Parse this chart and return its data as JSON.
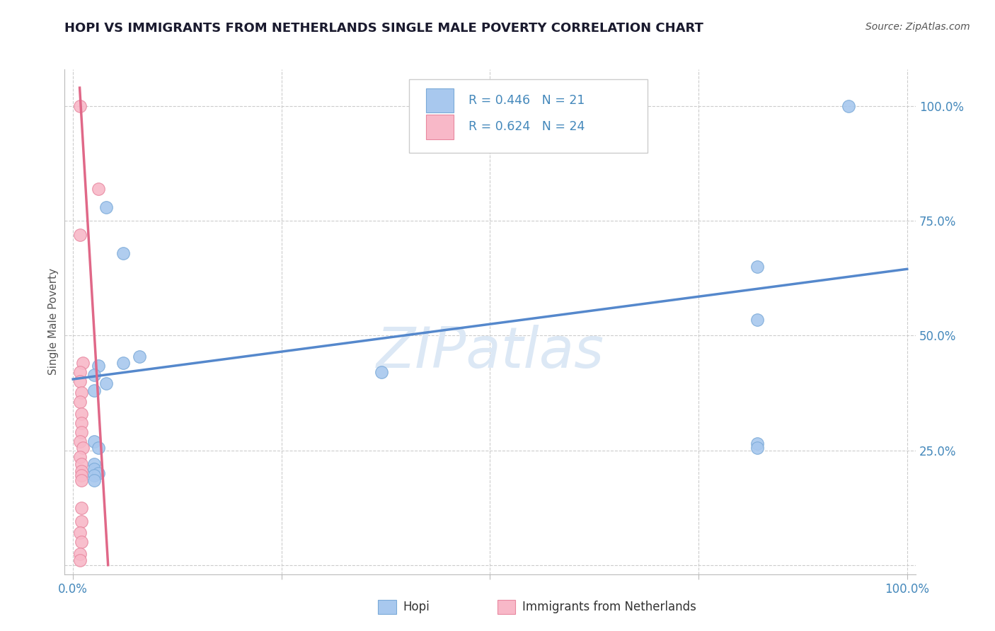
{
  "title": "HOPI VS IMMIGRANTS FROM NETHERLANDS SINGLE MALE POVERTY CORRELATION CHART",
  "source": "Source: ZipAtlas.com",
  "ylabel": "Single Male Poverty",
  "xlim": [
    -0.01,
    1.01
  ],
  "ylim": [
    -0.02,
    1.08
  ],
  "hopi_scatter": [
    [
      0.93,
      1.0
    ],
    [
      0.04,
      0.78
    ],
    [
      0.06,
      0.68
    ],
    [
      0.82,
      0.65
    ],
    [
      0.82,
      0.535
    ],
    [
      0.37,
      0.42
    ],
    [
      0.08,
      0.455
    ],
    [
      0.06,
      0.44
    ],
    [
      0.03,
      0.435
    ],
    [
      0.025,
      0.415
    ],
    [
      0.04,
      0.395
    ],
    [
      0.025,
      0.38
    ],
    [
      0.025,
      0.27
    ],
    [
      0.03,
      0.255
    ],
    [
      0.025,
      0.22
    ],
    [
      0.025,
      0.21
    ],
    [
      0.03,
      0.2
    ],
    [
      0.025,
      0.195
    ],
    [
      0.025,
      0.185
    ],
    [
      0.82,
      0.265
    ],
    [
      0.82,
      0.255
    ]
  ],
  "hopi_color": "#A8C8EE",
  "hopi_edge_color": "#7BAAD8",
  "hopi_R": 0.446,
  "hopi_N": 21,
  "hopi_line": [
    [
      0.0,
      0.405
    ],
    [
      1.0,
      0.645
    ]
  ],
  "hopi_line_color": "#5588CC",
  "netherlands_scatter": [
    [
      0.008,
      1.0
    ],
    [
      0.03,
      0.82
    ],
    [
      0.008,
      0.72
    ],
    [
      0.012,
      0.44
    ],
    [
      0.008,
      0.42
    ],
    [
      0.008,
      0.4
    ],
    [
      0.01,
      0.375
    ],
    [
      0.008,
      0.355
    ],
    [
      0.01,
      0.33
    ],
    [
      0.01,
      0.31
    ],
    [
      0.01,
      0.29
    ],
    [
      0.008,
      0.27
    ],
    [
      0.012,
      0.255
    ],
    [
      0.008,
      0.235
    ],
    [
      0.01,
      0.22
    ],
    [
      0.01,
      0.205
    ],
    [
      0.01,
      0.195
    ],
    [
      0.01,
      0.185
    ],
    [
      0.01,
      0.125
    ],
    [
      0.01,
      0.095
    ],
    [
      0.008,
      0.07
    ],
    [
      0.01,
      0.05
    ],
    [
      0.008,
      0.025
    ],
    [
      0.008,
      0.01
    ]
  ],
  "netherlands_color": "#F8B8C8",
  "netherlands_edge_color": "#E888A0",
  "netherlands_R": 0.624,
  "netherlands_N": 24,
  "netherlands_line": [
    [
      0.008,
      1.04
    ],
    [
      0.042,
      0.0
    ]
  ],
  "netherlands_line_color": "#E06888",
  "grid_color": "#cccccc",
  "bg_color": "#ffffff",
  "title_color": "#1a1a2e",
  "axis_value_color": "#4488BB",
  "watermark_color": "#dce8f5",
  "legend_text_color": "#4488BB"
}
